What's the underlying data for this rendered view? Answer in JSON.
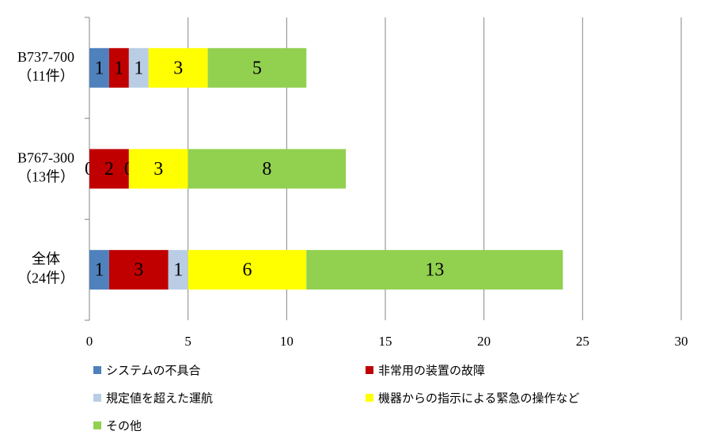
{
  "chart_data": {
    "type": "stacked-bar-horizontal",
    "categories": [
      [
        "B737-700",
        "（11件）"
      ],
      [
        "B767-300",
        "（13件）"
      ],
      [
        "全体",
        "（24件）"
      ]
    ],
    "series": [
      {
        "name": "システムの不具合",
        "color": "#4f81bd",
        "values": [
          1,
          0,
          1
        ]
      },
      {
        "name": "非常用の装置の故障",
        "color": "#c00000",
        "values": [
          1,
          2,
          3
        ]
      },
      {
        "name": "規定値を超えた運航",
        "color": "#b9cde5",
        "values": [
          1,
          0,
          1
        ]
      },
      {
        "name": "機器からの指示による緊急の操作など",
        "color": "#ffff00",
        "values": [
          3,
          3,
          6
        ]
      },
      {
        "name": "その他",
        "color": "#92d050",
        "values": [
          5,
          8,
          13
        ]
      }
    ],
    "xlim": [
      0,
      30
    ],
    "xticks": [
      0,
      5,
      10,
      15,
      20,
      25,
      30
    ],
    "grid": true
  }
}
